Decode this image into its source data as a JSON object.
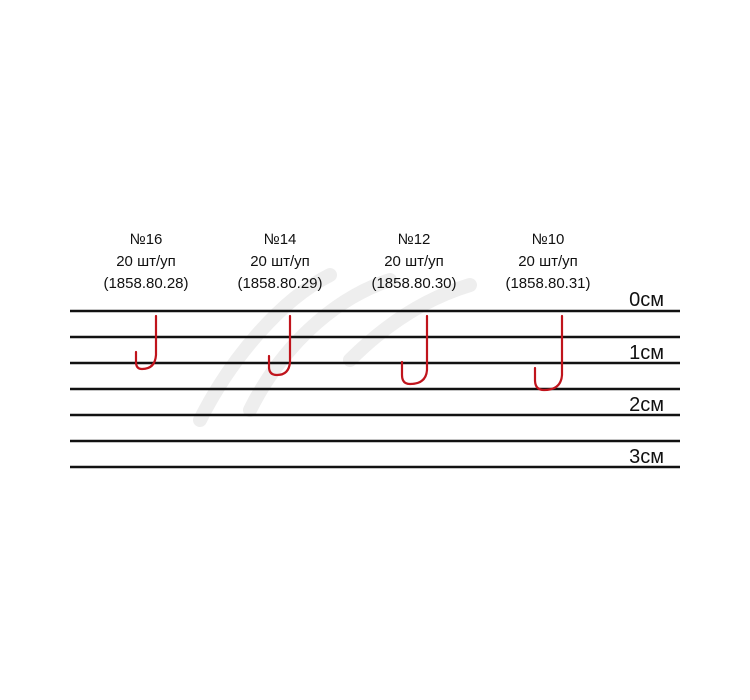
{
  "hooks": [
    {
      "number": "№16",
      "pack": "20 шт/уп",
      "code": "(1858.80.28)"
    },
    {
      "number": "№14",
      "pack": "20 шт/уп",
      "code": "(1858.80.29)"
    },
    {
      "number": "№12",
      "pack": "20 шт/уп",
      "code": "(1858.80.30)"
    },
    {
      "number": "№10",
      "pack": "20 шт/уп",
      "code": "(1858.80.31)"
    }
  ],
  "scale_labels": [
    "0см",
    "1см",
    "2см",
    "3см"
  ],
  "colors": {
    "hook": "#c0141c",
    "lines": "#111111",
    "watermark": "#eeeeee"
  }
}
